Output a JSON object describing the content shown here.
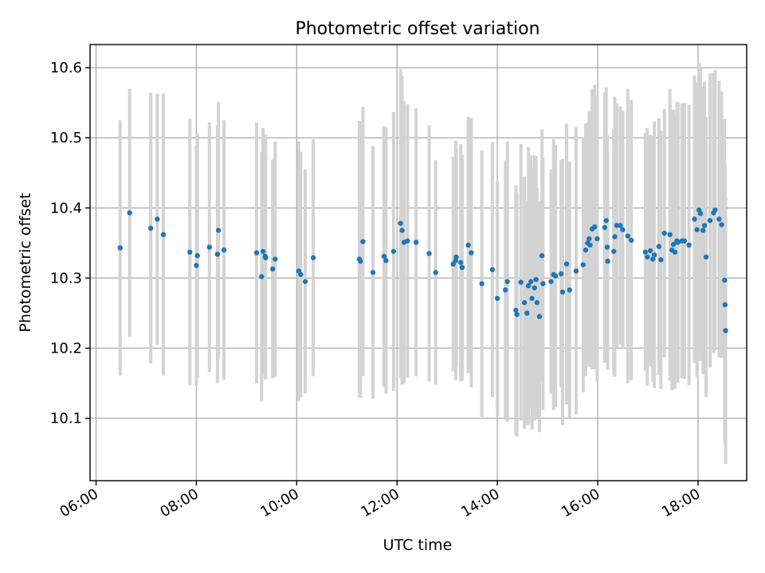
{
  "chart_data": {
    "type": "scatter",
    "title": "Photometric offset variation",
    "xlabel": "UTC time",
    "ylabel": "Photometric offset",
    "x_unit": "hours_utc",
    "xlim": [
      5.88,
      18.97
    ],
    "ylim": [
      10.011,
      10.633
    ],
    "x_ticks": [
      {
        "value": 6,
        "label": "06:00"
      },
      {
        "value": 8,
        "label": "08:00"
      },
      {
        "value": 10,
        "label": "10:00"
      },
      {
        "value": 12,
        "label": "12:00"
      },
      {
        "value": 14,
        "label": "14:00"
      },
      {
        "value": 16,
        "label": "16:00"
      },
      {
        "value": 18,
        "label": "18:00"
      }
    ],
    "y_ticks": [
      {
        "value": 10.1,
        "label": "10.1"
      },
      {
        "value": 10.2,
        "label": "10.2"
      },
      {
        "value": 10.3,
        "label": "10.3"
      },
      {
        "value": 10.4,
        "label": "10.4"
      },
      {
        "value": 10.5,
        "label": "10.5"
      },
      {
        "value": 10.6,
        "label": "10.6"
      }
    ],
    "grid": true,
    "point_color": "#1f77b4",
    "errorbar_color": "#d3d3d3",
    "points": [
      [
        6.48,
        10.343,
        0.182
      ],
      [
        6.67,
        10.393,
        0.177
      ],
      [
        7.09,
        10.371,
        0.193
      ],
      [
        7.22,
        10.384,
        0.179
      ],
      [
        7.34,
        10.362,
        0.201
      ],
      [
        7.87,
        10.337,
        0.19
      ],
      [
        8.0,
        10.318,
        0.171
      ],
      [
        8.02,
        10.332,
        0.174
      ],
      [
        8.26,
        10.344,
        0.178
      ],
      [
        8.42,
        10.334,
        0.184
      ],
      [
        8.44,
        10.368,
        0.183
      ],
      [
        8.55,
        10.34,
        0.185
      ],
      [
        9.2,
        10.336,
        0.186
      ],
      [
        9.3,
        10.302,
        0.178
      ],
      [
        9.33,
        10.338,
        0.176
      ],
      [
        9.37,
        10.331,
        0.174
      ],
      [
        9.38,
        10.329,
        0.174
      ],
      [
        9.52,
        10.313,
        0.156
      ],
      [
        9.57,
        10.327,
        0.168
      ],
      [
        10.04,
        10.31,
        0.185
      ],
      [
        10.08,
        10.305,
        0.175
      ],
      [
        10.17,
        10.295,
        0.16
      ],
      [
        10.33,
        10.329,
        0.169
      ],
      [
        11.25,
        10.327,
        0.197
      ],
      [
        11.27,
        10.324,
        0.195
      ],
      [
        11.32,
        10.352,
        0.192
      ],
      [
        11.52,
        10.308,
        0.18
      ],
      [
        11.74,
        10.331,
        0.186
      ],
      [
        11.78,
        10.325,
        0.19
      ],
      [
        11.93,
        10.338,
        0.199
      ],
      [
        12.07,
        10.378,
        0.22
      ],
      [
        12.1,
        10.368,
        0.22
      ],
      [
        12.14,
        10.351,
        0.201
      ],
      [
        12.21,
        10.353,
        0.195
      ],
      [
        12.38,
        10.351,
        0.191
      ],
      [
        12.64,
        10.335,
        0.183
      ],
      [
        12.77,
        10.308,
        0.16
      ],
      [
        13.12,
        10.32,
        0.153
      ],
      [
        13.17,
        10.325,
        0.171
      ],
      [
        13.18,
        10.33,
        0.155
      ],
      [
        13.27,
        10.322,
        0.169
      ],
      [
        13.3,
        10.315,
        0.161
      ],
      [
        13.42,
        10.347,
        0.183
      ],
      [
        13.48,
        10.336,
        0.192
      ],
      [
        13.69,
        10.292,
        0.19
      ],
      [
        13.9,
        10.312,
        0.182
      ],
      [
        14.0,
        10.271,
        0.167
      ],
      [
        14.16,
        10.283,
        0.185
      ],
      [
        14.2,
        10.295,
        0.2
      ],
      [
        14.37,
        10.254,
        0.178
      ],
      [
        14.39,
        10.248,
        0.174
      ],
      [
        14.47,
        10.294,
        0.197
      ],
      [
        14.54,
        10.265,
        0.18
      ],
      [
        14.59,
        10.25,
        0.16
      ],
      [
        14.62,
        10.289,
        0.198
      ],
      [
        14.67,
        10.295,
        0.18
      ],
      [
        14.69,
        10.271,
        0.187
      ],
      [
        14.74,
        10.286,
        0.189
      ],
      [
        14.77,
        10.298,
        0.176
      ],
      [
        14.79,
        10.265,
        0.164
      ],
      [
        14.84,
        10.245,
        0.165
      ],
      [
        14.89,
        10.332,
        0.18
      ],
      [
        14.91,
        10.292,
        0.18
      ],
      [
        15.07,
        10.295,
        0.16
      ],
      [
        15.12,
        10.305,
        0.193
      ],
      [
        15.16,
        10.303,
        0.187
      ],
      [
        15.27,
        10.306,
        0.162
      ],
      [
        15.3,
        10.28,
        0.19
      ],
      [
        15.38,
        10.32,
        0.2
      ],
      [
        15.44,
        10.283,
        0.183
      ],
      [
        15.57,
        10.31,
        0.205
      ],
      [
        15.71,
        10.319,
        0.182
      ],
      [
        15.76,
        10.34,
        0.18
      ],
      [
        15.8,
        10.35,
        0.172
      ],
      [
        15.83,
        10.356,
        0.182
      ],
      [
        15.85,
        10.347,
        0.174
      ],
      [
        15.89,
        10.37,
        0.2
      ],
      [
        15.94,
        10.373,
        0.203
      ],
      [
        15.99,
        10.356,
        0.204
      ],
      [
        16.14,
        10.372,
        0.193
      ],
      [
        16.17,
        10.382,
        0.19
      ],
      [
        16.19,
        10.344,
        0.16
      ],
      [
        16.2,
        10.324,
        0.155
      ],
      [
        16.32,
        10.338,
        0.175
      ],
      [
        16.34,
        10.359,
        0.2
      ],
      [
        16.38,
        10.375,
        0.174
      ],
      [
        16.45,
        10.375,
        0.17
      ],
      [
        16.5,
        10.369,
        0.17
      ],
      [
        16.6,
        10.36,
        0.21
      ],
      [
        16.67,
        10.354,
        0.2
      ],
      [
        16.95,
        10.337,
        0.17
      ],
      [
        16.99,
        10.33,
        0.184
      ],
      [
        17.05,
        10.339,
        0.165
      ],
      [
        17.1,
        10.327,
        0.175
      ],
      [
        17.13,
        10.333,
        0.19
      ],
      [
        17.22,
        10.345,
        0.183
      ],
      [
        17.26,
        10.326,
        0.184
      ],
      [
        17.33,
        10.364,
        0.177
      ],
      [
        17.44,
        10.362,
        0.208
      ],
      [
        17.48,
        10.34,
        0.2
      ],
      [
        17.51,
        10.348,
        0.192
      ],
      [
        17.54,
        10.337,
        0.195
      ],
      [
        17.58,
        10.353,
        0.198
      ],
      [
        17.6,
        10.351,
        0.2
      ],
      [
        17.68,
        10.353,
        0.196
      ],
      [
        17.73,
        10.353,
        0.197
      ],
      [
        17.82,
        10.347,
        0.2
      ],
      [
        17.93,
        10.384,
        0.205
      ],
      [
        17.98,
        10.369,
        0.21
      ],
      [
        18.02,
        10.397,
        0.21
      ],
      [
        18.05,
        10.392,
        0.21
      ],
      [
        18.1,
        10.368,
        0.205
      ],
      [
        18.13,
        10.375,
        0.205
      ],
      [
        18.16,
        10.33,
        0.2
      ],
      [
        18.24,
        10.382,
        0.21
      ],
      [
        18.31,
        10.393,
        0.2
      ],
      [
        18.34,
        10.397,
        0.2
      ],
      [
        18.42,
        10.384,
        0.197
      ],
      [
        18.47,
        10.376,
        0.19
      ],
      [
        18.53,
        10.297,
        0.23
      ],
      [
        18.54,
        10.262,
        0.2
      ],
      [
        18.55,
        10.225,
        0.19
      ]
    ]
  }
}
